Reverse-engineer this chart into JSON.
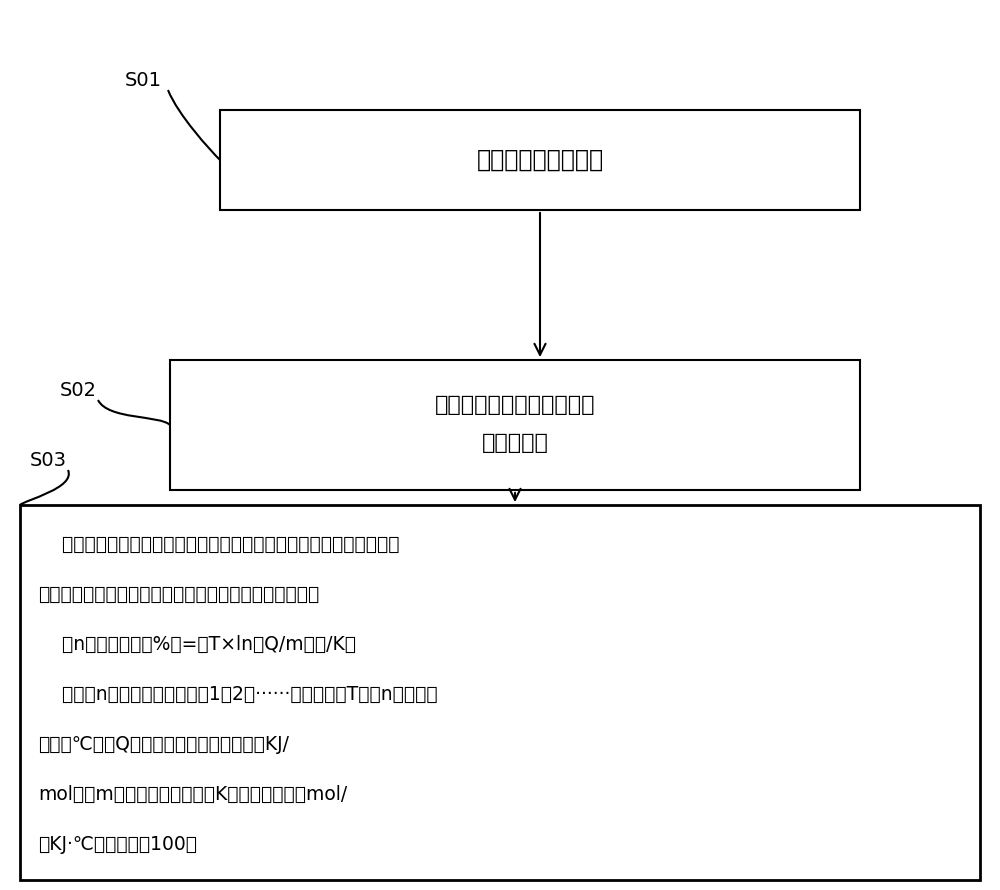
{
  "bg_color": "#ffffff",
  "box_color": "#ffffff",
  "box_edge_color": "#000000",
  "text_color": "#000000",
  "arrow_color": "#000000",
  "step_labels": [
    "S01",
    "S02",
    "S03"
  ],
  "box1_text": "制备镁基合金铸锂；",
  "box2_line1": "对制备得到的所述铸锂进行",
  "box2_line2": "加热处理；",
  "box3_line1": "    将加热处理后的所述铸锂进行多个道次的径锥，其中，对于前预设数",
  "box3_line2": "目的道次的径锥，对锥件变形量控制按照如下公式进行：",
  "box3_line3": "    第n道次变形量（%）=（T×ln（Q/m））/K，",
  "box3_line4": "    式中：n为道次数値，取値为1、2、······预设数目；T为第n道次锥造",
  "box3_line5": "温度（℃）；Q为合金动态再结晶激活能（KJ/",
  "box3_line6": "mol）；m为锥造频率（次）；K为无量纲系数（mol/",
  "box3_line7": "（KJ·℃）），取値100。"
}
